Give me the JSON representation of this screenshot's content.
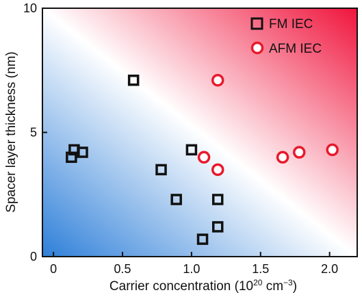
{
  "chart_data": {
    "type": "scatter",
    "background": {
      "description": "diagonal gradient",
      "colors": [
        "#2e7fd9",
        "#ffffff",
        "#f0143c"
      ]
    },
    "xlabel_prefix": "Carrier concentration (10",
    "xlabel_exp1": "20",
    "xlabel_mid": " cm",
    "xlabel_exp2": "−3",
    "xlabel_suffix": ")",
    "ylabel": "Spacer layer thickness (nm)",
    "xlim": [
      -0.08,
      2.2
    ],
    "ylim": [
      0,
      10
    ],
    "xticks": [
      "0",
      "0.5",
      "1.0",
      "1.5",
      "2.0"
    ],
    "xtick_values": [
      0,
      0.5,
      1.0,
      1.5,
      2.0
    ],
    "yticks": [
      "0",
      "5",
      "10"
    ],
    "ytick_values": [
      0,
      5,
      10
    ],
    "legend_position": "top-right",
    "series": [
      {
        "name": "FM IEC",
        "marker": "square",
        "color": "#111111",
        "points": [
          [
            0.13,
            4.0
          ],
          [
            0.15,
            4.3
          ],
          [
            0.21,
            4.2
          ],
          [
            0.58,
            7.1
          ],
          [
            0.78,
            3.5
          ],
          [
            0.89,
            2.3
          ],
          [
            1.0,
            4.3
          ],
          [
            1.08,
            0.7
          ],
          [
            1.19,
            2.3
          ],
          [
            1.19,
            1.2
          ]
        ]
      },
      {
        "name": "AFM IEC",
        "marker": "circle",
        "color": "#e8192c",
        "points": [
          [
            1.19,
            7.1
          ],
          [
            1.09,
            4.0
          ],
          [
            1.19,
            3.5
          ],
          [
            1.66,
            4.0
          ],
          [
            1.78,
            4.2
          ],
          [
            2.02,
            4.3
          ]
        ]
      }
    ]
  }
}
